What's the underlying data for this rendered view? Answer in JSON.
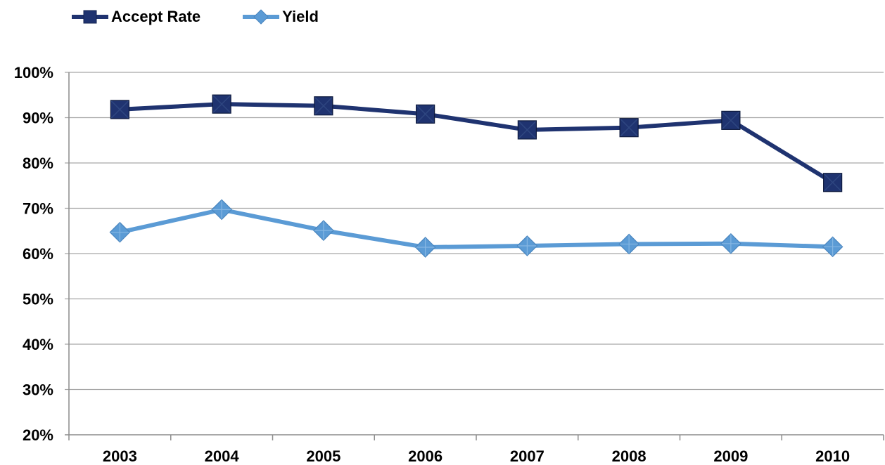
{
  "chart_data": {
    "type": "line",
    "categories": [
      "2003",
      "2004",
      "2005",
      "2006",
      "2007",
      "2008",
      "2009",
      "2010"
    ],
    "series": [
      {
        "name": "Accept Rate",
        "values": [
          91.8,
          93.0,
          92.6,
          90.8,
          87.3,
          87.8,
          89.4,
          75.7
        ],
        "color": "#1f3370",
        "marker": "square"
      },
      {
        "name": "Yield",
        "values": [
          64.7,
          69.7,
          65.1,
          61.4,
          61.7,
          62.1,
          62.2,
          61.5
        ],
        "color": "#5b9bd5",
        "marker": "diamond"
      }
    ],
    "ylim": [
      20,
      100
    ],
    "yticks": [
      "20%",
      "30%",
      "40%",
      "50%",
      "60%",
      "70%",
      "80%",
      "90%",
      "100%"
    ],
    "y_format": "percent",
    "grid": true,
    "legend_position": "top-left",
    "title": "",
    "xlabel": "",
    "ylabel": ""
  }
}
